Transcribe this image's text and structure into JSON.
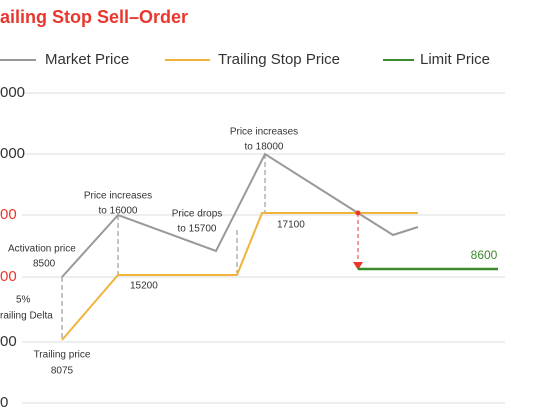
{
  "title": "ailing Stop Sell–Order",
  "legend": [
    "Market Price",
    "Trailing Stop Price",
    "Limit Price"
  ],
  "axis_labels": [
    "000",
    "000",
    "00",
    "00",
    "00",
    "0"
  ],
  "annotations": {
    "activation": [
      "Activation price",
      "8500"
    ],
    "increase1": [
      "Price increases",
      "to 16000"
    ],
    "drop": [
      "Price drops",
      "to 15700"
    ],
    "increase2": [
      "Price increases",
      "to 18000"
    ],
    "stop1": "15200",
    "stop2": "17100",
    "delta": [
      "5%",
      "railing Delta"
    ],
    "trailing": [
      "Trailing price",
      "8075"
    ],
    "limit": "8600"
  }
}
